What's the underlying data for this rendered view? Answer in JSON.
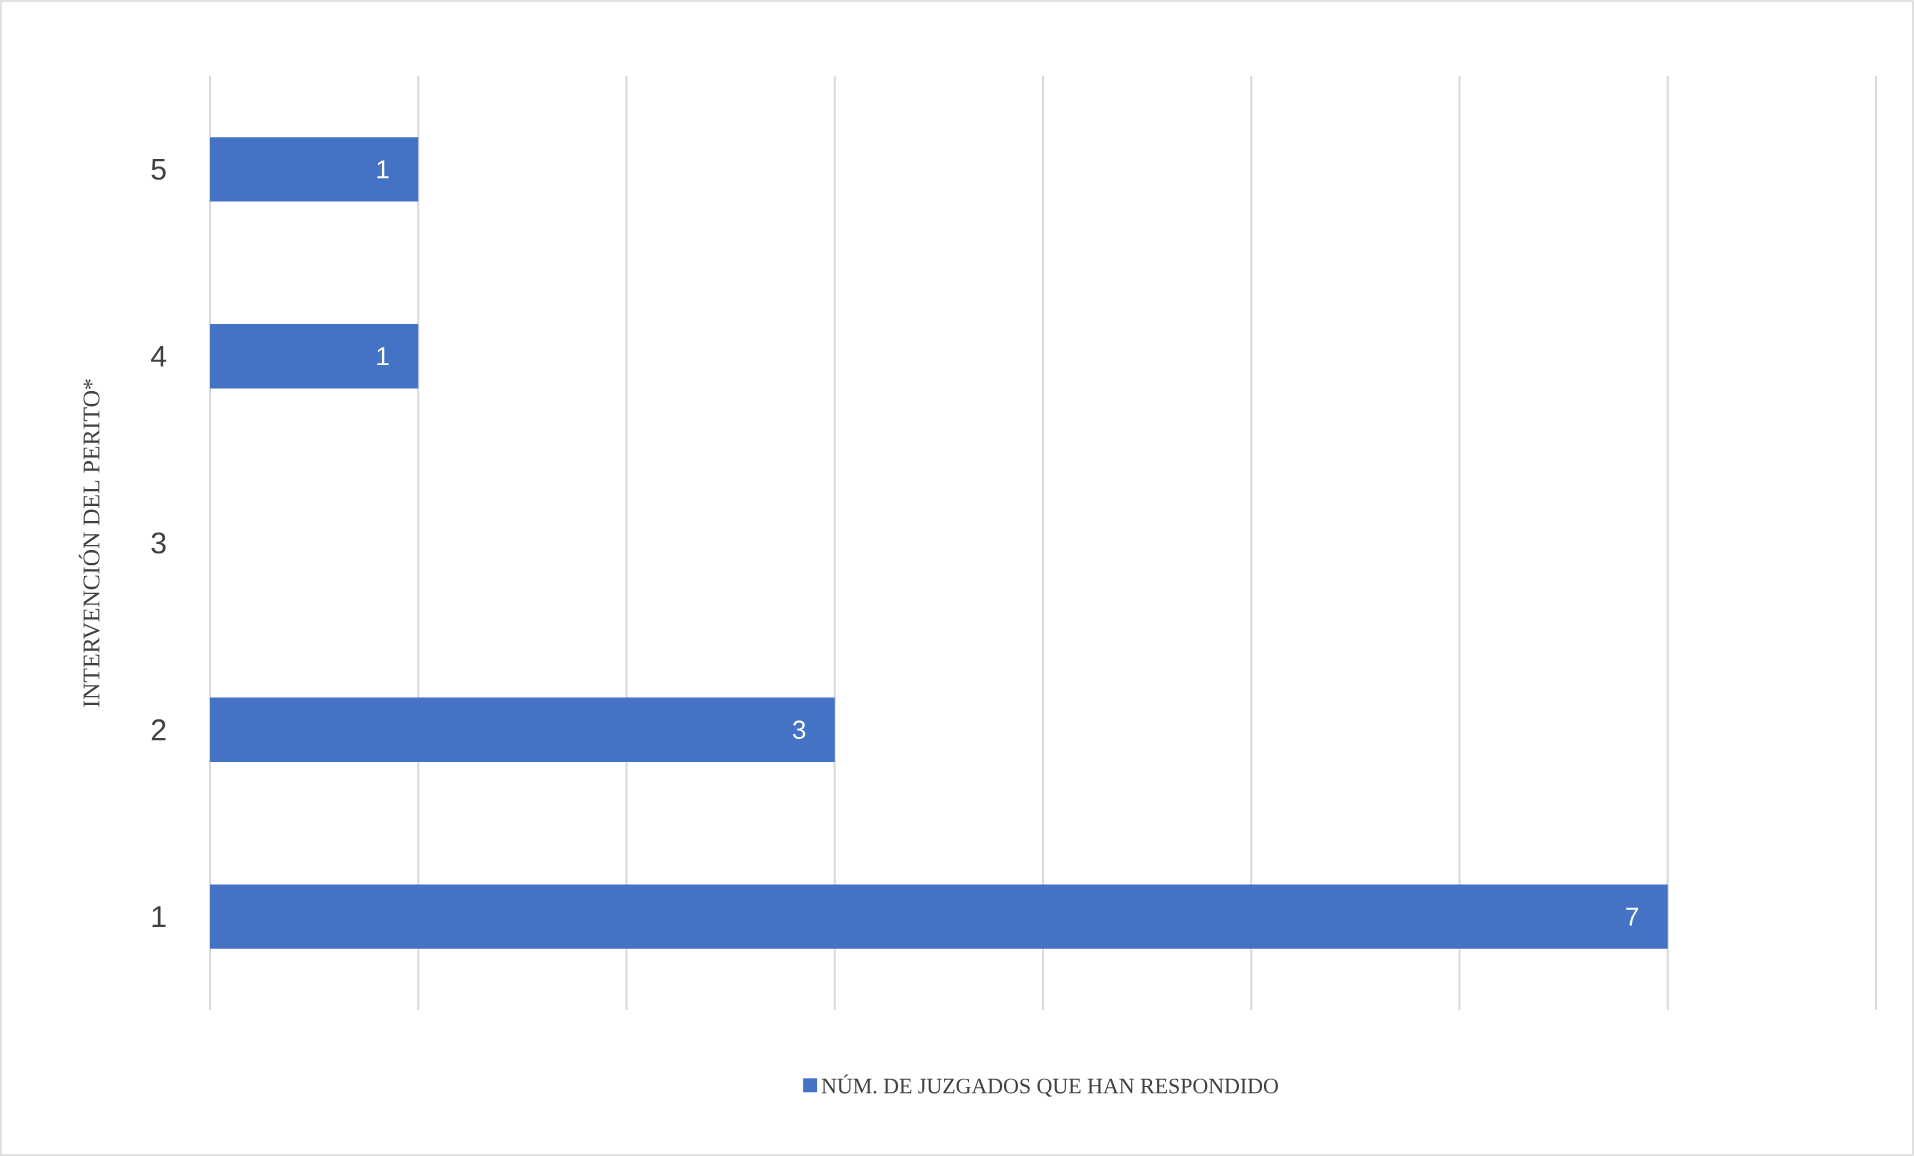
{
  "chart_data": {
    "type": "bar",
    "orientation": "horizontal",
    "ylabel": "INTERVENCIÓN DEL PERITO*",
    "categories": [
      "5",
      "4",
      "3",
      "2",
      "1"
    ],
    "series": [
      {
        "name": "NÚM. DE JUZGADOS QUE HAN RESPONDIDO",
        "color": "#4472c4",
        "values": [
          1,
          1,
          null,
          3,
          7
        ]
      }
    ],
    "xlim": [
      0,
      8
    ],
    "xticks": [
      {
        "value": 0,
        "label": null
      },
      {
        "value": 1,
        "label": null
      },
      {
        "value": 2,
        "label": null
      },
      {
        "value": 3,
        "label": null
      },
      {
        "value": 4,
        "label": null
      },
      {
        "value": 5,
        "label": null
      },
      {
        "value": 6,
        "label": null
      },
      {
        "value": 7,
        "label": null
      },
      {
        "value": 8,
        "label": null
      }
    ],
    "tick_labels": "y",
    "grid": "x",
    "legend": "bottom",
    "data_labels": true
  }
}
